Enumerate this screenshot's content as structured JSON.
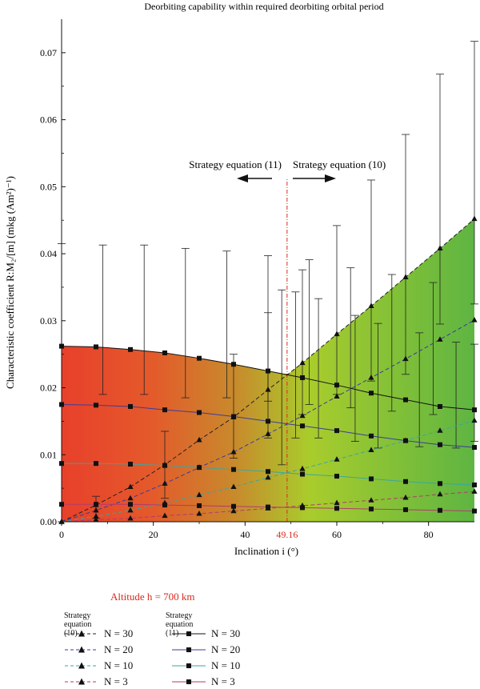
{
  "chart_data": {
    "type": "line",
    "title": "Deorbiting capability within required deorbiting orbital period",
    "xlabel": "Inclination i (°)",
    "ylabel": "Characteristic coefficient R:M₂/[m] (mkg (Am²)⁻¹)",
    "xlim": [
      0,
      90
    ],
    "ylim": [
      0,
      0.075
    ],
    "x_ticks": [
      "0",
      "20",
      "40",
      "60",
      "80"
    ],
    "x_tick_values": [
      0,
      20,
      40,
      60,
      80
    ],
    "y_ticks": [
      "0.00",
      "0.01",
      "0.02",
      "0.03",
      "0.04",
      "0.05",
      "0.06",
      "0.07"
    ],
    "y_tick_values": [
      0,
      0.01,
      0.02,
      0.03,
      0.04,
      0.05,
      0.06,
      0.07
    ],
    "grid": false,
    "background_gradient": {
      "from": "#e8402b",
      "mid": "#a9cc2c",
      "to": "#5eb542"
    },
    "divider": {
      "x": 49.16,
      "label": "49.16",
      "color": "#d92b1f"
    },
    "annotations": {
      "left": "Strategy equation (11)",
      "right": "Strategy equation (10)"
    },
    "series": [
      {
        "name": "N = 30",
        "strategy": "Strategy equation (10)",
        "marker": "triangle",
        "dash": "dashed",
        "color": "#222222",
        "x": [
          0,
          7.5,
          15,
          22.5,
          30,
          37.5,
          45,
          52.5,
          60,
          67.5,
          75,
          82.5,
          90
        ],
        "y": [
          0.0,
          0.0025,
          0.0052,
          0.0085,
          0.0122,
          0.0156,
          0.0197,
          0.0237,
          0.028,
          0.0322,
          0.0365,
          0.0408,
          0.0452
        ]
      },
      {
        "name": "N = 20",
        "strategy": "Strategy equation (10)",
        "marker": "triangle",
        "dash": "dashed",
        "color": "#3b3b9e",
        "x": [
          0,
          7.5,
          15,
          22.5,
          30,
          37.5,
          45,
          52.5,
          60,
          67.5,
          75,
          82.5,
          90
        ],
        "y": [
          0.0,
          0.0017,
          0.0035,
          0.0057,
          0.0081,
          0.0104,
          0.0131,
          0.0158,
          0.0187,
          0.0215,
          0.0243,
          0.0272,
          0.0301
        ]
      },
      {
        "name": "N = 10",
        "strategy": "Strategy equation (10)",
        "marker": "triangle",
        "dash": "dashed",
        "color": "#3aa6a0",
        "x": [
          0,
          7.5,
          15,
          22.5,
          30,
          37.5,
          45,
          52.5,
          60,
          67.5,
          75,
          82.5,
          90
        ],
        "y": [
          0.0,
          0.0008,
          0.0017,
          0.0028,
          0.004,
          0.0052,
          0.0066,
          0.0079,
          0.0093,
          0.0107,
          0.0121,
          0.0136,
          0.0151
        ]
      },
      {
        "name": "N = 3",
        "strategy": "Strategy equation (10)",
        "marker": "triangle",
        "dash": "dashed",
        "color": "#b23a6e",
        "x": [
          0,
          7.5,
          15,
          22.5,
          30,
          37.5,
          45,
          52.5,
          60,
          67.5,
          75,
          82.5,
          90
        ],
        "y": [
          0.0,
          0.0003,
          0.0005,
          0.0009,
          0.0012,
          0.0016,
          0.002,
          0.0024,
          0.0028,
          0.0032,
          0.0036,
          0.0041,
          0.0045
        ]
      },
      {
        "name": "N = 30",
        "strategy": "Strategy equation (11)",
        "marker": "square",
        "dash": "solid",
        "color": "#111111",
        "x": [
          0,
          7.5,
          15,
          22.5,
          30,
          37.5,
          45,
          52.5,
          60,
          67.5,
          75,
          82.5,
          90
        ],
        "y": [
          0.0262,
          0.0261,
          0.0257,
          0.0252,
          0.0244,
          0.0235,
          0.0225,
          0.0215,
          0.0204,
          0.0192,
          0.0182,
          0.0172,
          0.0167
        ]
      },
      {
        "name": "N = 20",
        "strategy": "Strategy equation (11)",
        "marker": "square",
        "dash": "solid",
        "color": "#3b3b9e",
        "x": [
          0,
          7.5,
          15,
          22.5,
          30,
          37.5,
          45,
          52.5,
          60,
          67.5,
          75,
          82.5,
          90
        ],
        "y": [
          0.0175,
          0.0174,
          0.0172,
          0.0167,
          0.0163,
          0.0157,
          0.015,
          0.0143,
          0.0136,
          0.0128,
          0.0121,
          0.0115,
          0.0111
        ]
      },
      {
        "name": "N = 10",
        "strategy": "Strategy equation (11)",
        "marker": "square",
        "dash": "solid",
        "color": "#3aa6a0",
        "x": [
          0,
          7.5,
          15,
          22.5,
          30,
          37.5,
          45,
          52.5,
          60,
          67.5,
          75,
          82.5,
          90
        ],
        "y": [
          0.0087,
          0.0087,
          0.0086,
          0.0084,
          0.0081,
          0.0078,
          0.0075,
          0.0071,
          0.0068,
          0.0064,
          0.006,
          0.0057,
          0.0055
        ]
      },
      {
        "name": "N = 3",
        "strategy": "Strategy equation (11)",
        "marker": "square",
        "dash": "solid",
        "color": "#b23a6e",
        "x": [
          0,
          7.5,
          15,
          22.5,
          30,
          37.5,
          45,
          52.5,
          60,
          67.5,
          75,
          82.5,
          90
        ],
        "y": [
          0.0026,
          0.0026,
          0.0026,
          0.0025,
          0.0024,
          0.0023,
          0.0022,
          0.0021,
          0.002,
          0.0019,
          0.0018,
          0.0017,
          0.0016
        ]
      }
    ],
    "error_bars": [
      {
        "x": 0,
        "y": 0.0262,
        "low": 0.0,
        "high": 0.0415
      },
      {
        "x": 9,
        "y": 0.0261,
        "low": 0.019,
        "high": 0.0413
      },
      {
        "x": 18,
        "y": 0.0257,
        "low": 0.019,
        "high": 0.0413
      },
      {
        "x": 27,
        "y": 0.0252,
        "low": 0.0185,
        "high": 0.0408
      },
      {
        "x": 36,
        "y": 0.0244,
        "low": 0.0185,
        "high": 0.0404
      },
      {
        "x": 45,
        "y": 0.0235,
        "low": 0.018,
        "high": 0.0397
      },
      {
        "x": 54,
        "y": 0.0225,
        "low": 0.0175,
        "high": 0.0391
      },
      {
        "x": 63,
        "y": 0.0215,
        "low": 0.017,
        "high": 0.0379
      },
      {
        "x": 72,
        "y": 0.0204,
        "low": 0.0165,
        "high": 0.0369
      },
      {
        "x": 81,
        "y": 0.0192,
        "low": 0.016,
        "high": 0.0357
      },
      {
        "x": 7.5,
        "y": 0.0025,
        "low": 0.0005,
        "high": 0.0038
      },
      {
        "x": 22.5,
        "y": 0.0085,
        "low": 0.0035,
        "high": 0.0135
      },
      {
        "x": 37.5,
        "y": 0.0156,
        "low": 0.0095,
        "high": 0.025
      },
      {
        "x": 45,
        "y": 0.0197,
        "low": 0.0125,
        "high": 0.0312
      },
      {
        "x": 52.5,
        "y": 0.0237,
        "low": 0.016,
        "high": 0.0376
      },
      {
        "x": 60,
        "y": 0.028,
        "low": 0.019,
        "high": 0.0442
      },
      {
        "x": 67.5,
        "y": 0.0322,
        "low": 0.021,
        "high": 0.051
      },
      {
        "x": 75,
        "y": 0.0365,
        "low": 0.022,
        "high": 0.0578
      },
      {
        "x": 82.5,
        "y": 0.0408,
        "low": 0.0295,
        "high": 0.0668
      },
      {
        "x": 90,
        "y": 0.0452,
        "low": 0.0325,
        "high": 0.0717
      },
      {
        "x": 48,
        "y": 0.0215,
        "low": 0.0085,
        "high": 0.0346
      },
      {
        "x": 51,
        "y": 0.0215,
        "low": 0.0125,
        "high": 0.0343
      },
      {
        "x": 56,
        "y": 0.021,
        "low": 0.0125,
        "high": 0.0333
      },
      {
        "x": 64,
        "y": 0.0195,
        "low": 0.012,
        "high": 0.0308
      },
      {
        "x": 69,
        "y": 0.0188,
        "low": 0.011,
        "high": 0.0296
      },
      {
        "x": 78,
        "y": 0.0178,
        "low": 0.0112,
        "high": 0.0282
      },
      {
        "x": 86,
        "y": 0.017,
        "low": 0.011,
        "high": 0.0268
      },
      {
        "x": 90,
        "y": 0.0167,
        "low": 0.012,
        "high": 0.0265
      }
    ]
  },
  "legend": {
    "altitude": "Altitude h = 700 km",
    "head_left": "Strategy equation (10)",
    "head_right": "Strategy equation (11)",
    "left_items": [
      "N = 30",
      "N = 20",
      "N = 10",
      "N = 3"
    ],
    "right_items": [
      "N = 30",
      "N = 20",
      "N = 10",
      "N = 3"
    ]
  }
}
